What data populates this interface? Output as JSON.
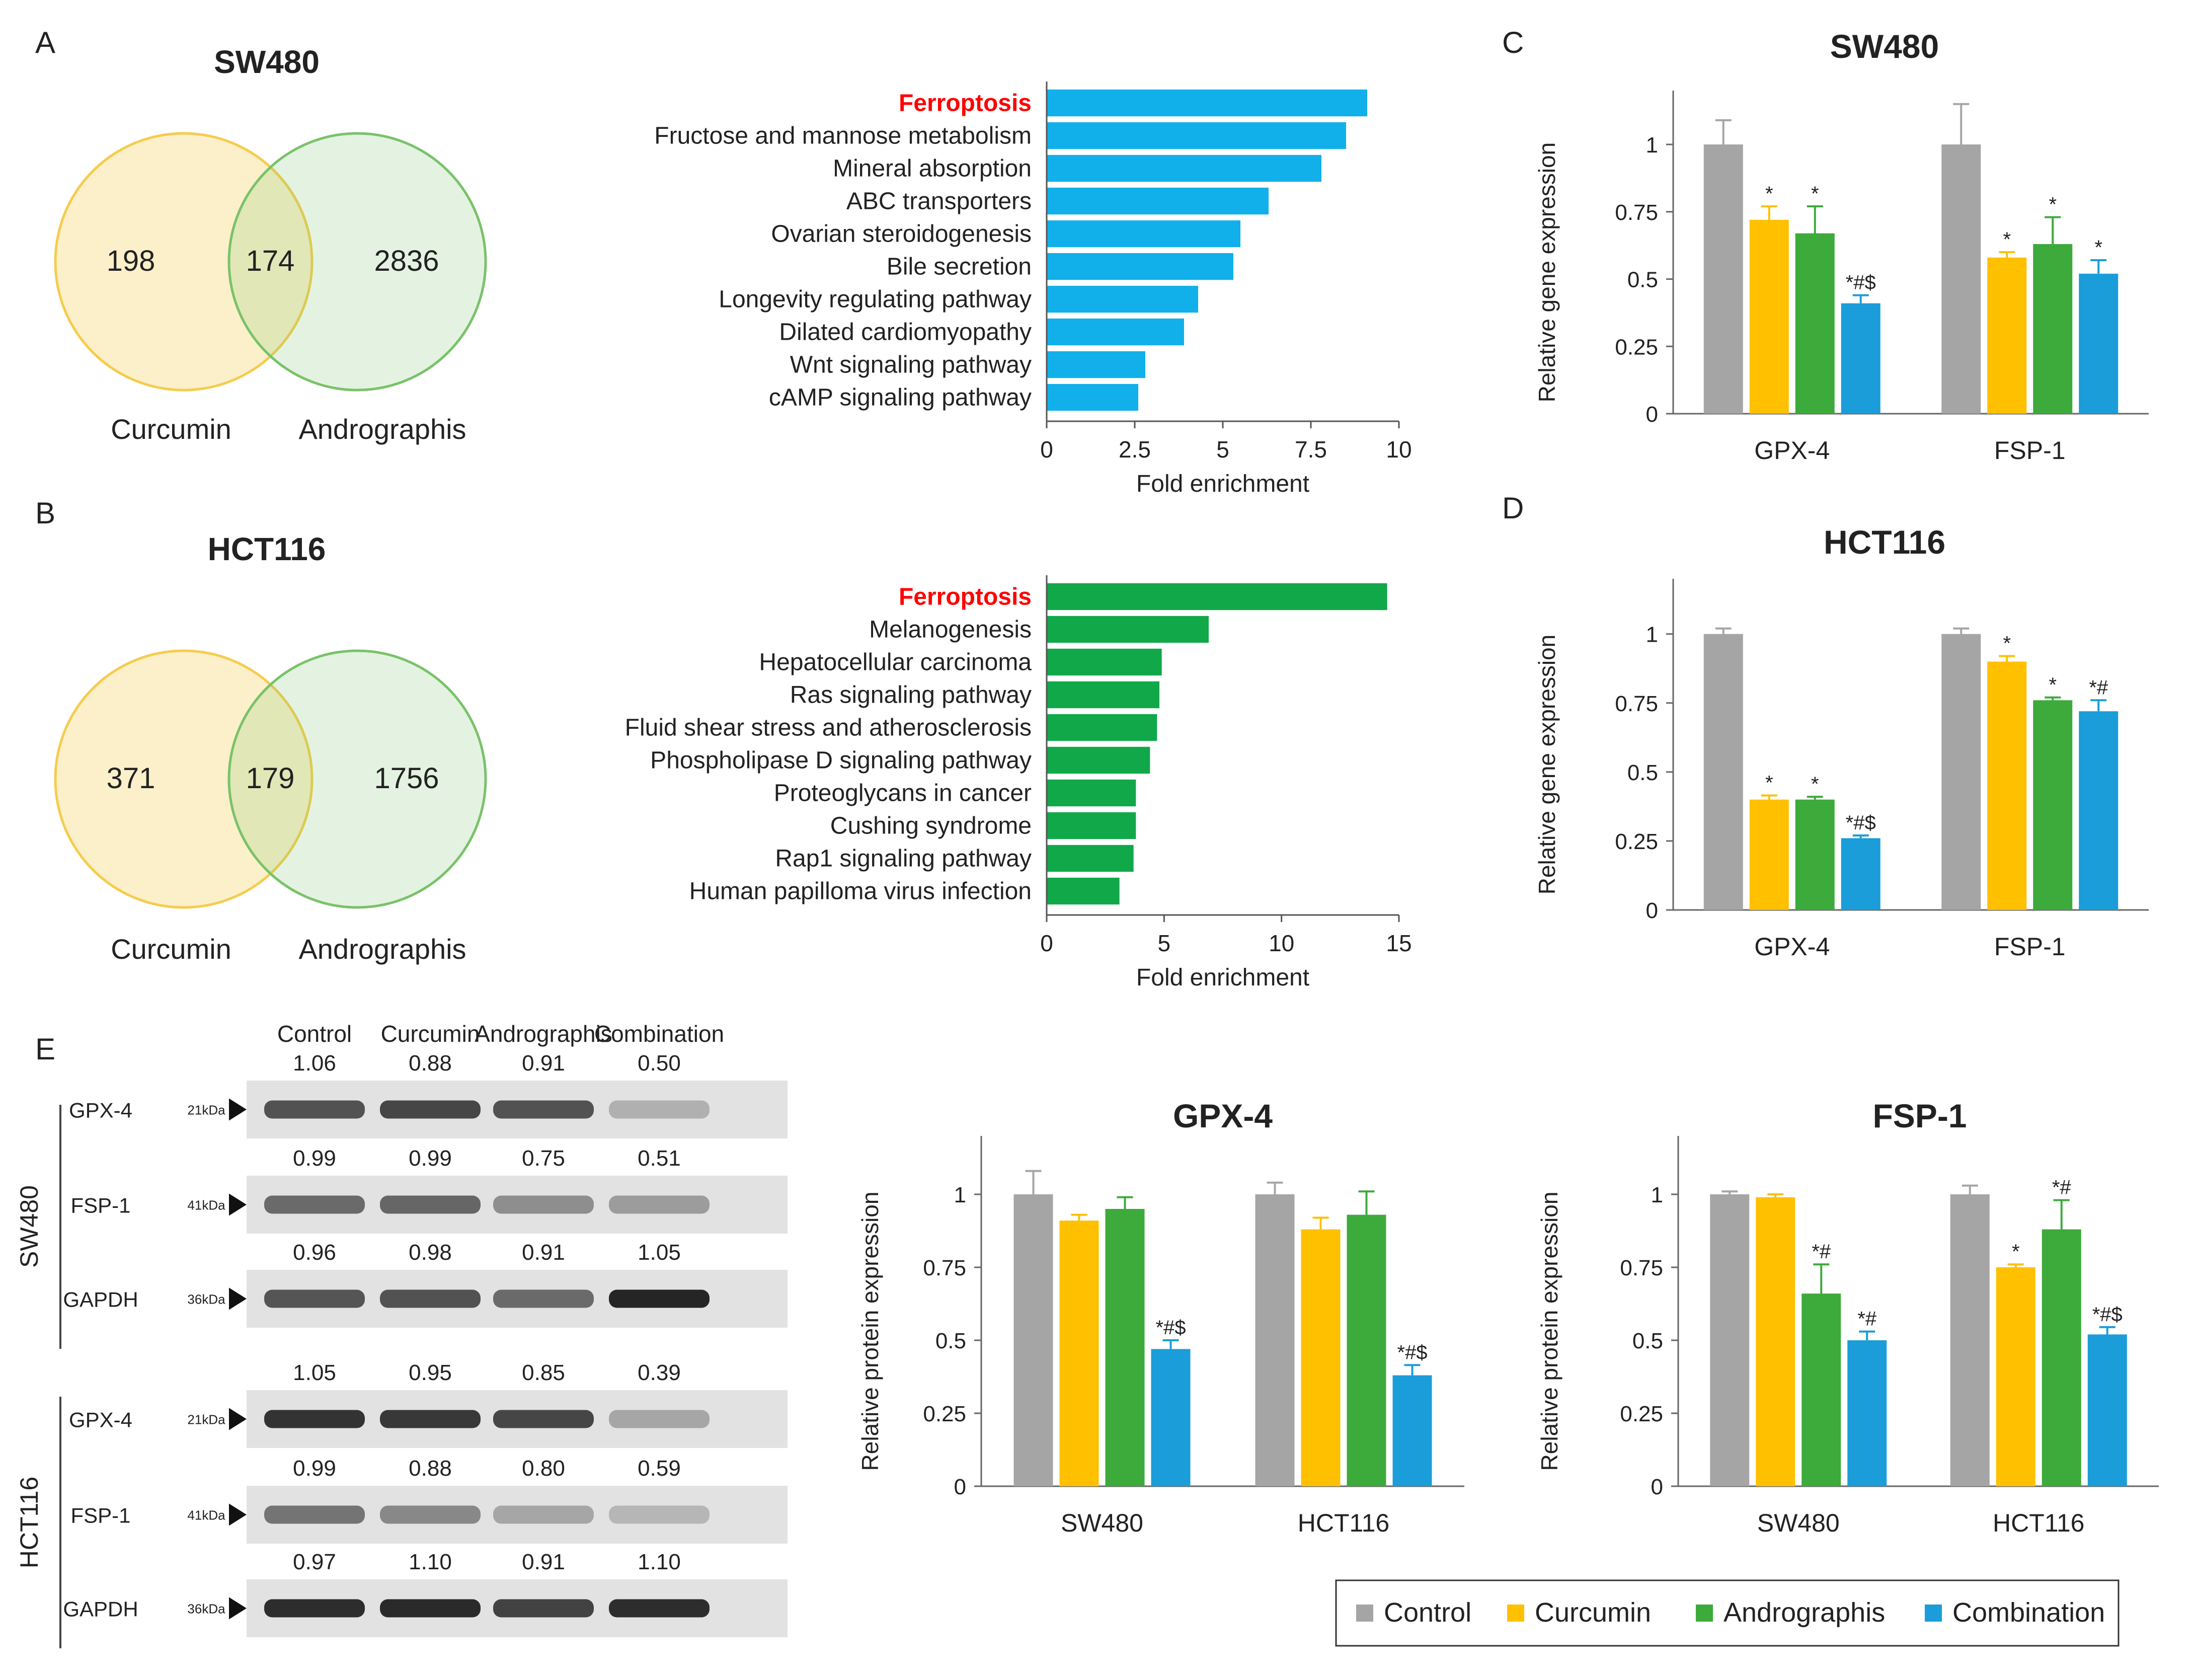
{
  "panel_labels": {
    "a": "A",
    "b": "B",
    "c": "C",
    "d": "D",
    "e": "E"
  },
  "colors": {
    "control": "#a5a5a5",
    "curcumin": "#ffc000",
    "andrographis": "#3daa3c",
    "combination": "#1a9dd9",
    "kegg_a": "#11b0ea",
    "kegg_b": "#11a84a",
    "venn_yellow": "#f5cc4e",
    "venn_green": "#79c26a",
    "highlight": "#ff0000"
  },
  "venn": {
    "a": {
      "title": "SW480",
      "left_only": "198",
      "overlap": "174",
      "right_only": "2836",
      "left_label": "Curcumin",
      "right_label": "Andrographis"
    },
    "b": {
      "title": "HCT116",
      "left_only": "371",
      "overlap": "179",
      "right_only": "1756",
      "left_label": "Curcumin",
      "right_label": "Andrographis"
    }
  },
  "legend": {
    "control": "Control",
    "curcumin": "Curcumin",
    "andrographis": "Andrographis",
    "combination": "Combination"
  },
  "western": {
    "column_labels": [
      "Control",
      "Curcumin",
      "Andrographis",
      "Combination"
    ],
    "cell_lines": [
      "SW480",
      "HCT116"
    ],
    "blocks": [
      {
        "values": [
          "1.06",
          "0.88",
          "0.91",
          "0.50"
        ],
        "protein": "GPX-4",
        "size": "21kDa",
        "intensity": [
          0.72,
          0.78,
          0.72,
          0.25
        ]
      },
      {
        "values": [
          "0.99",
          "0.99",
          "0.75",
          "0.51"
        ],
        "protein": "FSP-1",
        "size": "41kDa",
        "intensity": [
          0.6,
          0.62,
          0.42,
          0.35
        ]
      },
      {
        "values": [
          "0.96",
          "0.98",
          "0.91",
          "1.05"
        ],
        "protein": "GAPDH",
        "size": "36kDa",
        "intensity": [
          0.7,
          0.72,
          0.6,
          0.95
        ]
      },
      {
        "values": [
          "1.05",
          "0.95",
          "0.85",
          "0.39"
        ],
        "protein": "GPX-4",
        "size": "21kDa",
        "intensity": [
          0.88,
          0.85,
          0.78,
          0.3
        ]
      },
      {
        "values": [
          "0.99",
          "0.88",
          "0.80",
          "0.59"
        ],
        "protein": "FSP-1",
        "size": "41kDa",
        "intensity": [
          0.55,
          0.45,
          0.3,
          0.22
        ]
      },
      {
        "values": [
          "0.97",
          "1.10",
          "0.91",
          "1.10"
        ],
        "protein": "GAPDH",
        "size": "36kDa",
        "intensity": [
          0.9,
          0.92,
          0.8,
          0.9
        ]
      }
    ]
  },
  "chart_data": [
    {
      "id": "kegg_a",
      "type": "bar",
      "orientation": "horizontal",
      "categories": [
        "Ferroptosis",
        "Fructose and mannose metabolism",
        "Mineral absorption",
        "ABC transporters",
        "Ovarian steroidogenesis",
        "Bile secretion",
        "Longevity regulating pathway",
        "Dilated cardiomyopathy",
        "Wnt signaling pathway",
        "cAMP signaling pathway"
      ],
      "values": [
        9.1,
        8.5,
        7.8,
        6.3,
        5.5,
        5.3,
        4.3,
        3.9,
        2.8,
        2.6
      ],
      "xlabel": "Fold enrichment",
      "xlim": [
        0,
        10
      ],
      "ticks": [
        "0",
        "2.5",
        "5",
        "7.5",
        "10"
      ],
      "tick_values": [
        0,
        2.5,
        5,
        7.5,
        10
      ],
      "highlight_index": 0
    },
    {
      "id": "kegg_b",
      "type": "bar",
      "orientation": "horizontal",
      "categories": [
        "Ferroptosis",
        "Melanogenesis",
        "Hepatocellular carcinoma",
        "Ras signaling pathway",
        "Fluid shear stress and atherosclerosis",
        "Phospholipase D signaling pathway",
        "Proteoglycans in cancer",
        "Cushing syndrome",
        "Rap1 signaling pathway",
        "Human papilloma virus infection"
      ],
      "values": [
        14.5,
        6.9,
        4.9,
        4.8,
        4.7,
        4.4,
        3.8,
        3.8,
        3.7,
        3.1
      ],
      "xlabel": "Fold enrichment",
      "xlim": [
        0,
        15
      ],
      "ticks": [
        "0",
        "5",
        "10",
        "15"
      ],
      "tick_values": [
        0,
        5,
        10,
        15
      ],
      "highlight_index": 0
    },
    {
      "id": "gene_sw480",
      "type": "bar",
      "title": "SW480",
      "ylabel": "Relative gene expression",
      "ylim": [
        0,
        1.2
      ],
      "ticks": [
        "0",
        "0.25",
        "0.5",
        "0.75",
        "1"
      ],
      "tick_values": [
        0,
        0.25,
        0.5,
        0.75,
        1
      ],
      "categories": [
        "GPX-4",
        "FSP-1"
      ],
      "series": [
        {
          "name": "Control",
          "values": [
            1.0,
            1.0
          ],
          "errors": [
            0.09,
            0.15
          ],
          "marks": [
            "",
            ""
          ]
        },
        {
          "name": "Curcumin",
          "values": [
            0.72,
            0.58
          ],
          "errors": [
            0.05,
            0.02
          ],
          "marks": [
            "*",
            "*"
          ]
        },
        {
          "name": "Andrographis",
          "values": [
            0.67,
            0.63
          ],
          "errors": [
            0.1,
            0.1
          ],
          "marks": [
            "*",
            "*"
          ]
        },
        {
          "name": "Combination",
          "values": [
            0.41,
            0.52
          ],
          "errors": [
            0.03,
            0.05
          ],
          "marks": [
            "*#$",
            "*"
          ]
        }
      ]
    },
    {
      "id": "gene_hct116",
      "type": "bar",
      "title": "HCT116",
      "ylabel": "Relative gene expression",
      "ylim": [
        0,
        1.2
      ],
      "ticks": [
        "0",
        "0.25",
        "0.5",
        "0.75",
        "1"
      ],
      "tick_values": [
        0,
        0.25,
        0.5,
        0.75,
        1
      ],
      "categories": [
        "GPX-4",
        "FSP-1"
      ],
      "series": [
        {
          "name": "Control",
          "values": [
            1.0,
            1.0
          ],
          "errors": [
            0.02,
            0.02
          ],
          "marks": [
            "",
            ""
          ]
        },
        {
          "name": "Curcumin",
          "values": [
            0.4,
            0.9
          ],
          "errors": [
            0.015,
            0.02
          ],
          "marks": [
            "*",
            "*"
          ]
        },
        {
          "name": "Andrographis",
          "values": [
            0.4,
            0.76
          ],
          "errors": [
            0.01,
            0.01
          ],
          "marks": [
            "*",
            "*"
          ]
        },
        {
          "name": "Combination",
          "values": [
            0.26,
            0.72
          ],
          "errors": [
            0.01,
            0.04
          ],
          "marks": [
            "*#$",
            "*#"
          ]
        }
      ]
    },
    {
      "id": "protein_gpx4",
      "type": "bar",
      "title": "GPX-4",
      "ylabel": "Relative protein expression",
      "ylim": [
        0,
        1.2
      ],
      "ticks": [
        "0",
        "0.25",
        "0.5",
        "0.75",
        "1"
      ],
      "tick_values": [
        0,
        0.25,
        0.5,
        0.75,
        1
      ],
      "categories": [
        "SW480",
        "HCT116"
      ],
      "series": [
        {
          "name": "Control",
          "values": [
            1.0,
            1.0
          ],
          "errors": [
            0.08,
            0.04
          ],
          "marks": [
            "",
            ""
          ]
        },
        {
          "name": "Curcumin",
          "values": [
            0.91,
            0.88
          ],
          "errors": [
            0.02,
            0.04
          ],
          "marks": [
            "",
            ""
          ]
        },
        {
          "name": "Andrographis",
          "values": [
            0.95,
            0.93
          ],
          "errors": [
            0.04,
            0.08
          ],
          "marks": [
            "",
            ""
          ]
        },
        {
          "name": "Combination",
          "values": [
            0.47,
            0.38
          ],
          "errors": [
            0.03,
            0.035
          ],
          "marks": [
            "*#$",
            "*#$"
          ]
        }
      ]
    },
    {
      "id": "protein_fsp1",
      "type": "bar",
      "title": "FSP-1",
      "ylabel": "Relative protein expression",
      "ylim": [
        0,
        1.2
      ],
      "ticks": [
        "0",
        "0.25",
        "0.5",
        "0.75",
        "1"
      ],
      "tick_values": [
        0,
        0.25,
        0.5,
        0.75,
        1
      ],
      "categories": [
        "SW480",
        "HCT116"
      ],
      "series": [
        {
          "name": "Control",
          "values": [
            1.0,
            1.0
          ],
          "errors": [
            0.01,
            0.03
          ],
          "marks": [
            "",
            ""
          ]
        },
        {
          "name": "Curcumin",
          "values": [
            0.99,
            0.75
          ],
          "errors": [
            0.01,
            0.01
          ],
          "marks": [
            "",
            "*"
          ]
        },
        {
          "name": "Andrographis",
          "values": [
            0.66,
            0.88
          ],
          "errors": [
            0.1,
            0.1
          ],
          "marks": [
            "*#",
            "*#"
          ]
        },
        {
          "name": "Combination",
          "values": [
            0.5,
            0.52
          ],
          "errors": [
            0.03,
            0.025
          ],
          "marks": [
            "*#",
            "*#$"
          ]
        }
      ]
    }
  ]
}
